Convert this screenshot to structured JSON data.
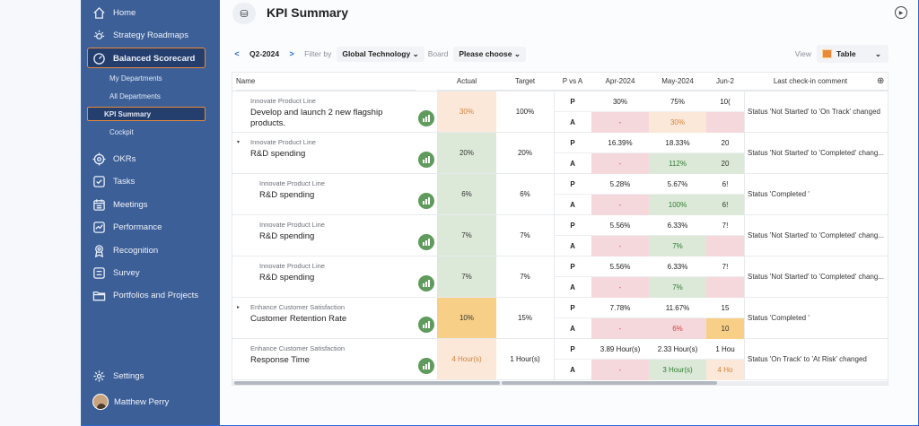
{
  "sidebar": {
    "items": [
      {
        "label": "Home",
        "icon": "home-icon"
      },
      {
        "label": "Strategy Roadmaps",
        "icon": "sun-icon"
      },
      {
        "label": "Balanced Scorecard",
        "icon": "gauge-icon"
      },
      {
        "label": "OKRs",
        "icon": "target-icon"
      },
      {
        "label": "Tasks",
        "icon": "checkbox-icon"
      },
      {
        "label": "Meetings",
        "icon": "calendar-icon"
      },
      {
        "label": "Performance",
        "icon": "chart-icon"
      },
      {
        "label": "Recognition",
        "icon": "medal-icon"
      },
      {
        "label": "Survey",
        "icon": "survey-icon"
      },
      {
        "label": "Portfolios and Projects",
        "icon": "folder-icon"
      }
    ],
    "subitems": [
      "My Departments",
      "All Departments",
      "KPI Summary",
      "Cockpit"
    ],
    "settings": "Settings",
    "user": "Matthew Perry"
  },
  "header": {
    "title": "KPI Summary"
  },
  "toolbar": {
    "period": "Q2-2024",
    "filter_label": "Filter by",
    "filter_value": "Global Technology",
    "board_label": "Board",
    "board_value": "Please choose",
    "view_label": "View",
    "view_value": "Table"
  },
  "table": {
    "headers": {
      "name": "Name",
      "actual": "Actual",
      "target": "Target",
      "pvsa": "P vs A",
      "m1": "Apr-2024",
      "m2": "May-2024",
      "m3": "Jun-2",
      "comment": "Last check-in comment"
    },
    "rows": [
      {
        "category": "Innovate Product Line",
        "kpi": "Develop and launch 2 new flagship products.",
        "actual": "30%",
        "target": "100%",
        "p": [
          "30%",
          "75%",
          "10("
        ],
        "a": [
          "-",
          "30%",
          ""
        ],
        "comment": "Status 'Not Started' to 'On Track' changed"
      },
      {
        "category": "Innovate Product Line",
        "kpi": "R&D spending",
        "actual": "20%",
        "target": "20%",
        "p": [
          "16.39%",
          "18.33%",
          "20"
        ],
        "a": [
          "-",
          "112%",
          "20"
        ],
        "comment": "Status 'Not Started' to 'Completed' chang..."
      },
      {
        "category": "Innovate Product Line",
        "kpi": "R&D spending",
        "actual": "6%",
        "target": "6%",
        "p": [
          "5.28%",
          "5.67%",
          "6!"
        ],
        "a": [
          "-",
          "100%",
          "6!"
        ],
        "comment": "Status 'Completed '"
      },
      {
        "category": "Innovate Product Line",
        "kpi": "R&D spending",
        "actual": "7%",
        "target": "7%",
        "p": [
          "5.56%",
          "6.33%",
          "7!"
        ],
        "a": [
          "-",
          "7%",
          ""
        ],
        "comment": "Status 'Not Started' to 'Completed' chang..."
      },
      {
        "category": "Innovate Product Line",
        "kpi": "R&D spending",
        "actual": "7%",
        "target": "7%",
        "p": [
          "5.56%",
          "6.33%",
          "7!"
        ],
        "a": [
          "-",
          "7%",
          ""
        ],
        "comment": "Status 'Not Started' to 'Completed' chang..."
      },
      {
        "category": "Enhance Customer Satisfaction",
        "kpi": "Customer Retention Rate",
        "actual": "10%",
        "target": "15%",
        "p": [
          "7.78%",
          "11.67%",
          "15"
        ],
        "a": [
          "-",
          "6%",
          "10"
        ],
        "comment": "Status 'Completed '"
      },
      {
        "category": "Enhance Customer Satisfaction",
        "kpi": "Response Time",
        "actual": "4 Hour(s)",
        "target": "1 Hour(s)",
        "p": [
          "3.89 Hour(s)",
          "2.33 Hour(s)",
          "1 Hou"
        ],
        "a": [
          "-",
          "3 Hour(s)",
          "4 Ho"
        ],
        "comment": "Status 'On Track' to 'At Risk' changed"
      }
    ],
    "p_label": "P",
    "a_label": "A"
  },
  "colors": {
    "sidebar": "#3d5f97",
    "active_border": "#e98a3a",
    "green_cell": "#dce9d8",
    "peach_cell": "#fbe8d8",
    "amber_cell": "#f7cf86",
    "red_cell": "#f5d8dc"
  }
}
